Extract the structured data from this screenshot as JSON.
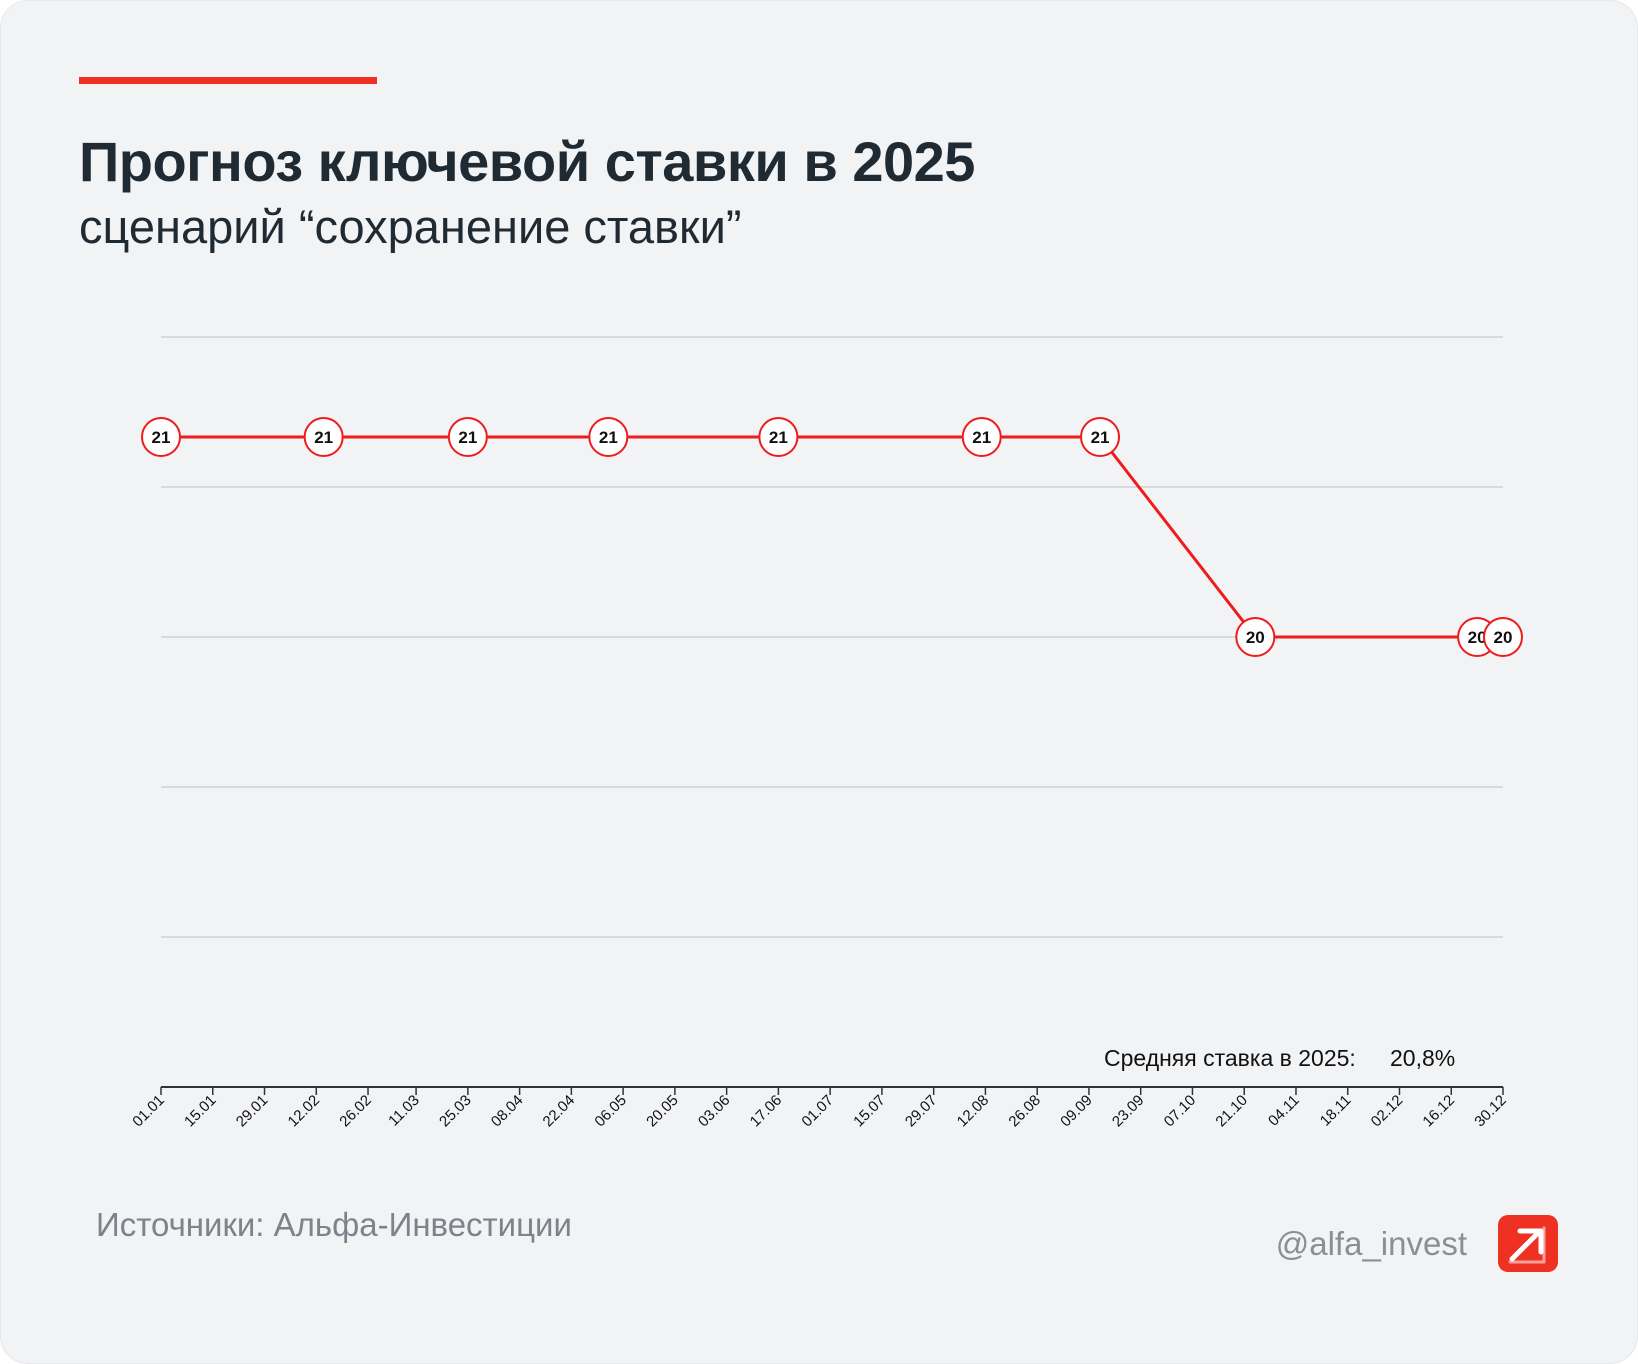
{
  "title": "Прогноз ключевой ставки в 2025",
  "subtitle": "сценарий “сохранение ставки”",
  "source": "Источники: Альфа-Инвестиции",
  "handle": "@alfa_invest",
  "average": {
    "label": "Средняя ставка в 2025:",
    "value": "20,8%"
  },
  "colors": {
    "accent": "#ef3124",
    "line": "#ee1c1c",
    "grid": "#c9cbce",
    "text": "#1f2a33"
  },
  "logo_icon": "arrow-up-right-icon",
  "chart_data": {
    "type": "line",
    "title": "Прогноз ключевой ставки в 2025",
    "subtitle": "сценарий “сохранение ставки”",
    "xlabel": "",
    "ylabel": "",
    "ylim": [
      18.5,
      21.5
    ],
    "grid": true,
    "x_ticks": [
      "01.01",
      "15.01",
      "29.01",
      "12.02",
      "26.02",
      "11.03",
      "25.03",
      "08.04",
      "22.04",
      "06.05",
      "20.05",
      "03.06",
      "17.06",
      "01.07",
      "15.07",
      "29.07",
      "12.08",
      "26.08",
      "09.09",
      "23.09",
      "07.10",
      "21.10",
      "04.11",
      "18.11",
      "02.12",
      "16.12",
      "30.12"
    ],
    "series": [
      {
        "x": [
          "01.01",
          "14.02",
          "25.03",
          "02.05",
          "17.06",
          "11.08",
          "12.09",
          "24.10",
          "23.12",
          "30.12"
        ],
        "values": [
          21,
          21,
          21,
          21,
          21,
          21,
          21,
          20,
          20,
          20
        ]
      }
    ]
  }
}
